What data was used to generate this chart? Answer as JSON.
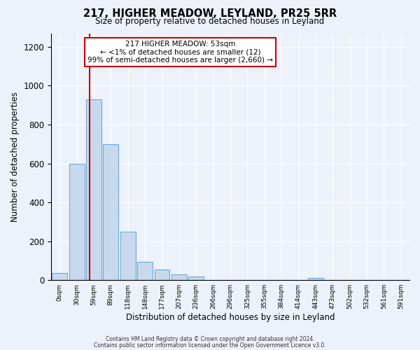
{
  "title": "217, HIGHER MEADOW, LEYLAND, PR25 5RR",
  "subtitle": "Size of property relative to detached houses in Leyland",
  "xlabel": "Distribution of detached houses by size in Leyland",
  "ylabel": "Number of detached properties",
  "bar_color": "#c8d9ee",
  "bar_edge_color": "#6aaad4",
  "vline_color": "#cc0000",
  "vline_x": 1,
  "annotation_line1": "217 HIGHER MEADOW: 53sqm",
  "annotation_line2": "← <1% of detached houses are smaller (12)",
  "annotation_line3": "99% of semi-detached houses are larger (2,660) →",
  "annotation_box_color": "#ffffff",
  "annotation_box_edge_color": "#cc0000",
  "bin_centers": [
    0,
    1,
    2,
    3,
    4,
    5,
    6,
    7,
    8,
    9,
    10,
    11,
    12,
    13,
    14,
    15,
    16,
    17,
    18,
    19,
    20
  ],
  "bin_labels": [
    "0sqm",
    "30sqm",
    "59sqm",
    "89sqm",
    "118sqm",
    "148sqm",
    "177sqm",
    "207sqm",
    "236sqm",
    "266sqm",
    "296sqm",
    "325sqm",
    "355sqm",
    "384sqm",
    "414sqm",
    "443sqm",
    "473sqm",
    "502sqm",
    "532sqm",
    "561sqm",
    "591sqm"
  ],
  "bar_heights": [
    35,
    600,
    930,
    700,
    248,
    95,
    55,
    30,
    18,
    0,
    0,
    0,
    0,
    0,
    0,
    10,
    0,
    0,
    0,
    0,
    0
  ],
  "ylim": [
    0,
    1270
  ],
  "yticks": [
    0,
    200,
    400,
    600,
    800,
    1000,
    1200
  ],
  "footer_line1": "Contains HM Land Registry data © Crown copyright and database right 2024.",
  "footer_line2": "Contains public sector information licensed under the Open Government Licence v3.0.",
  "bg_color": "#edf2fa",
  "plot_bg_color": "#edf2fa"
}
